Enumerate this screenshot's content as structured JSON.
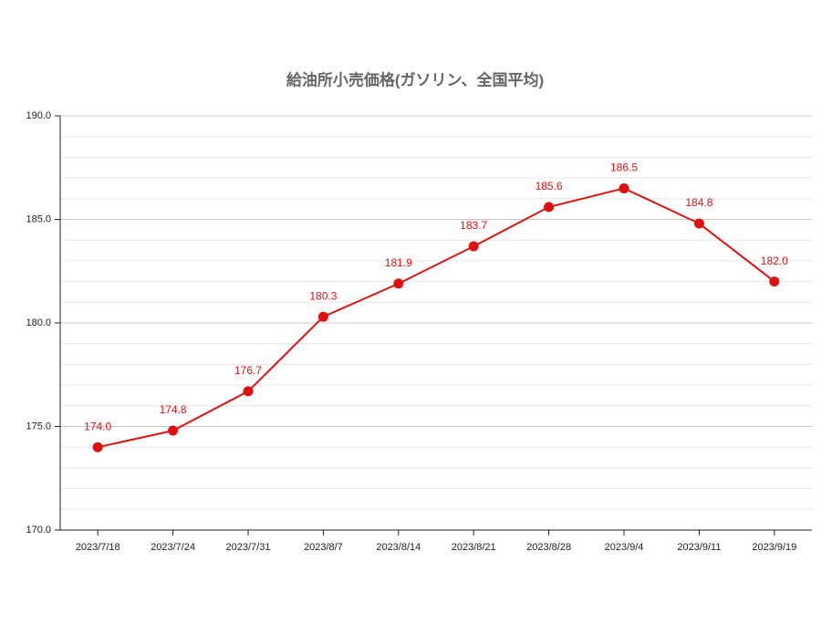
{
  "chart_data": {
    "type": "line",
    "title": "給油所小売価格(ガソリン、全国平均)",
    "categories": [
      "2023/7/18",
      "2023/7/24",
      "2023/7/31",
      "2023/8/7",
      "2023/8/14",
      "2023/8/21",
      "2023/8/28",
      "2023/9/4",
      "2023/9/11",
      "2023/9/19"
    ],
    "series": [
      {
        "name": null,
        "color": "#e01010",
        "values": [
          174,
          174.8,
          176.7,
          180.3,
          181.9,
          183.7,
          185.6,
          186.5,
          184.8,
          182
        ],
        "value_labels": [
          "174.0",
          "174.8",
          "176.7",
          "180.3",
          "181.9",
          "183.7",
          "185.6",
          "186.5",
          "184.8",
          "182.0"
        ]
      }
    ],
    "ylim": [
      170,
      190
    ],
    "yticks": [
      {
        "value": 170,
        "label": "170.0"
      },
      {
        "value": 175,
        "label": "175.0"
      },
      {
        "value": 180,
        "label": "180.0"
      },
      {
        "value": 185,
        "label": "185.0"
      },
      {
        "value": 190,
        "label": "190.0"
      }
    ],
    "minor_yticks": [
      171,
      172,
      173,
      174,
      176,
      177,
      178,
      179,
      181,
      182,
      183,
      184,
      186,
      187,
      188,
      189
    ],
    "grid": true
  }
}
